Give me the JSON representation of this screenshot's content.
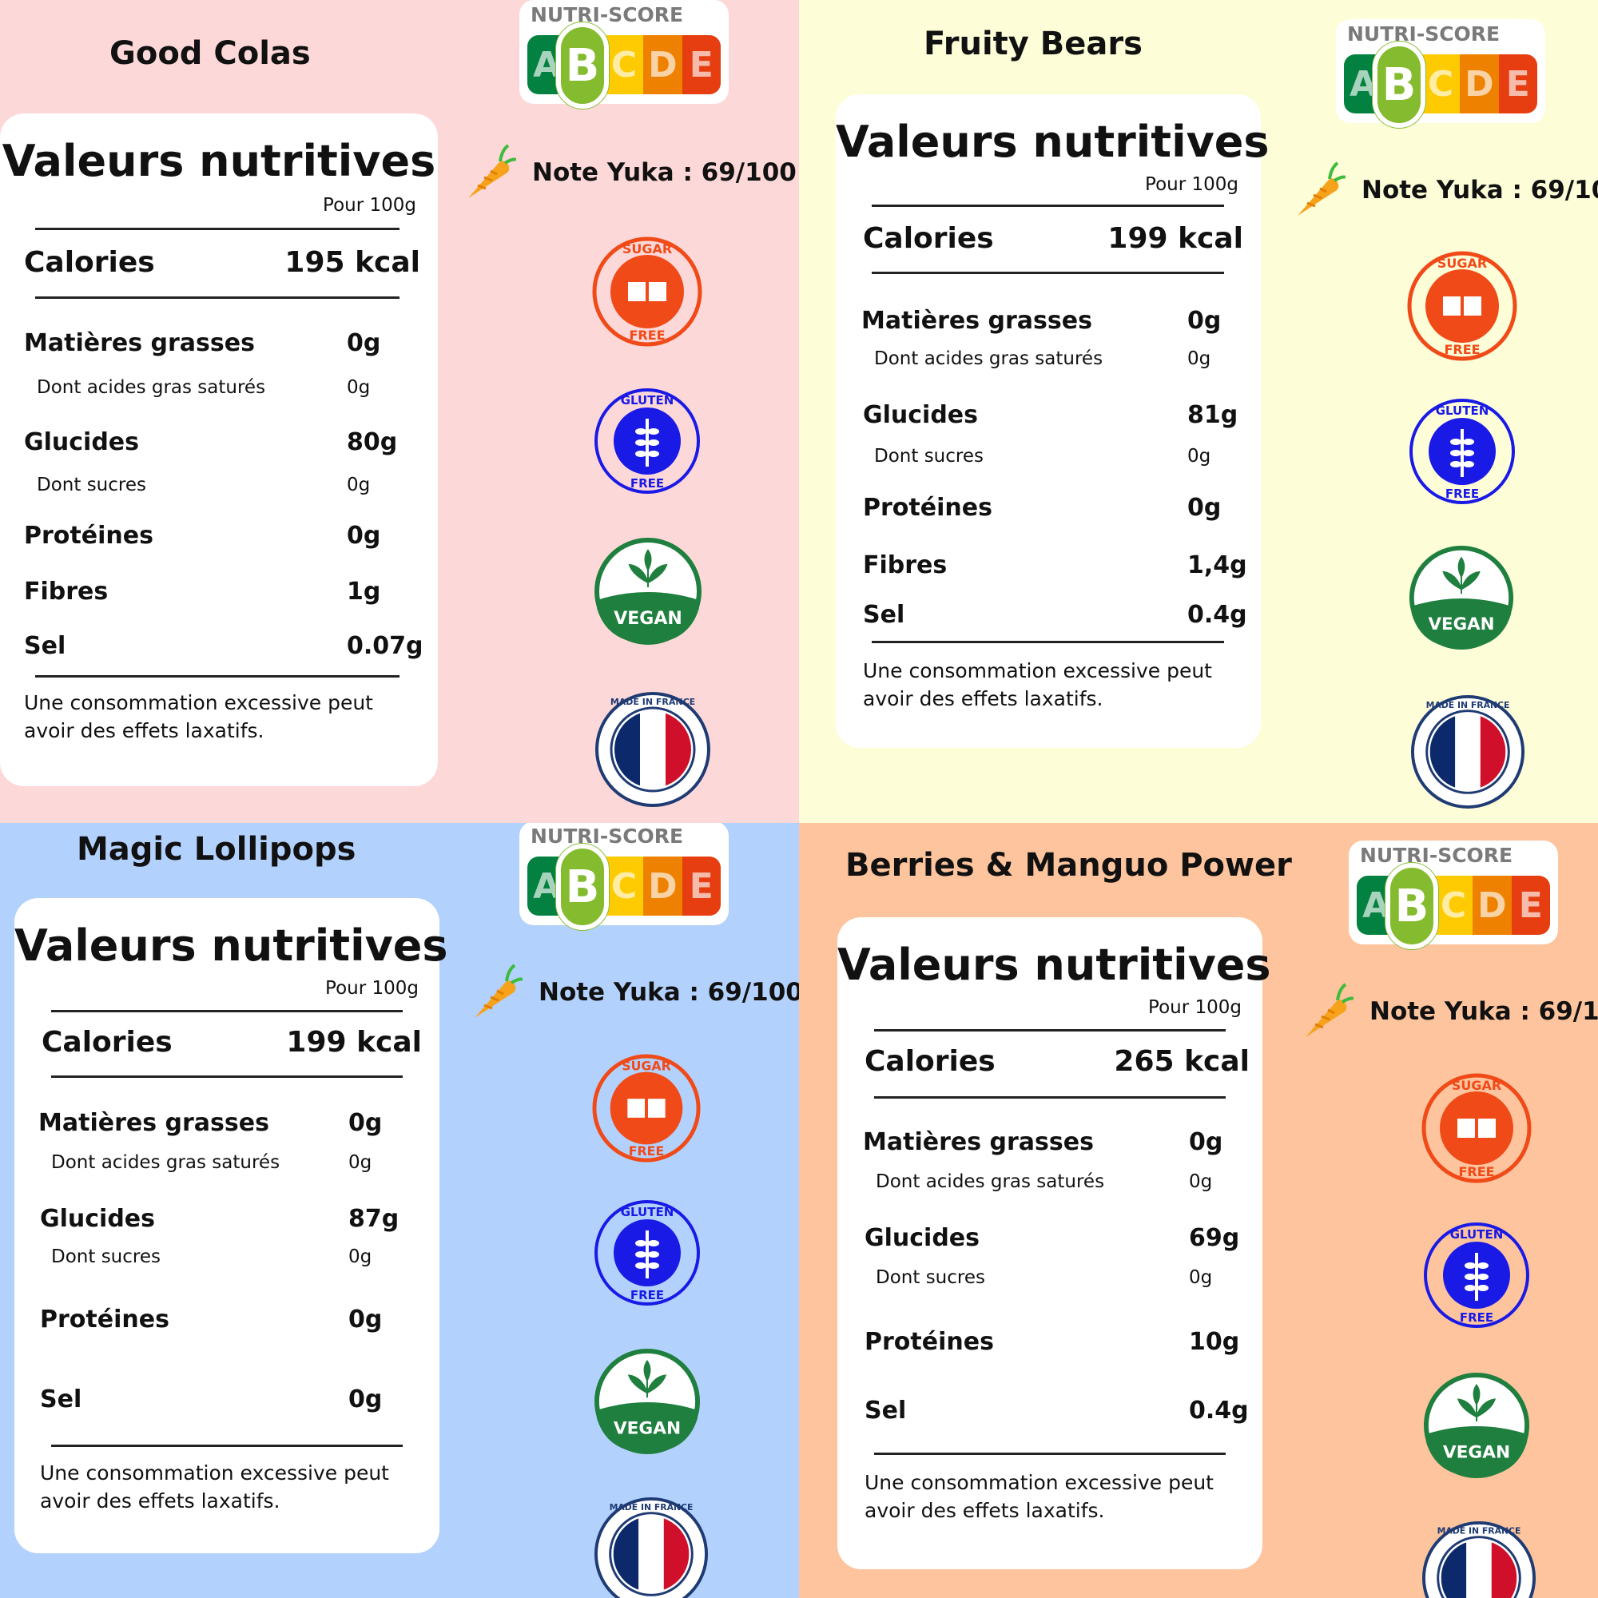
{
  "colors": {
    "pink": "#fdd8d8",
    "yellow": "#fdfdd8",
    "blue": "#b3d1fd",
    "peach": "#fdc49d",
    "nutri_a": "#038141",
    "nutri_b": "#85bb2f",
    "nutri_c": "#fecb02",
    "nutri_d": "#ee8100",
    "nutri_e": "#e63e11",
    "sugar": "#f04a18",
    "gluten": "#1a1ae6",
    "vegan": "#1f7f3e"
  },
  "common": {
    "panel_title": "Valeurs nutritives",
    "per": "Pour 100g",
    "calories": "Calories",
    "fat": "Matières grasses",
    "sat_fat": "Dont acides gras saturés",
    "carbs": "Glucides",
    "sugars": "Dont sucres",
    "protein": "Protéines",
    "fiber": "Fibres",
    "salt": "Sel",
    "warning": "Une consommation excessive peut avoir des effets laxatifs.",
    "nutriscore_label": "NUTRI-SCORE",
    "nutriscore_letters": [
      "A",
      "B",
      "C",
      "D",
      "E"
    ],
    "nutriscore_grade": "B",
    "yuka": "Note Yuka : 69/100",
    "badges": {
      "sugar_top": "SUGAR",
      "sugar_bottom": "FREE",
      "gluten_top": "GLUTEN",
      "gluten_bottom": "FREE",
      "vegan": "VEGAN",
      "france": "MADE IN FRANCE"
    }
  },
  "products": [
    {
      "name": "Good Colas",
      "calories": "195 kcal",
      "fat": "0g",
      "sat_fat": "0g",
      "carbs": "80g",
      "sugars": "0g",
      "protein": "0g",
      "fiber": "1g",
      "salt": "0.07g"
    },
    {
      "name": "Fruity Bears",
      "calories": "199 kcal",
      "fat": "0g",
      "sat_fat": "0g",
      "carbs": "81g",
      "sugars": "0g",
      "protein": "0g",
      "fiber": "1,4g",
      "salt": "0.4g"
    },
    {
      "name": "Magic Lollipops",
      "calories": "199 kcal",
      "fat": "0g",
      "sat_fat": "0g",
      "carbs": "87g",
      "sugars": "0g",
      "protein": "0g",
      "salt": "0g"
    },
    {
      "name": "Berries & Manguo Power",
      "calories": "265 kcal",
      "fat": "0g",
      "sat_fat": "0g",
      "carbs": "69g",
      "sugars": "0g",
      "protein": "10g",
      "salt": "0.4g"
    }
  ]
}
